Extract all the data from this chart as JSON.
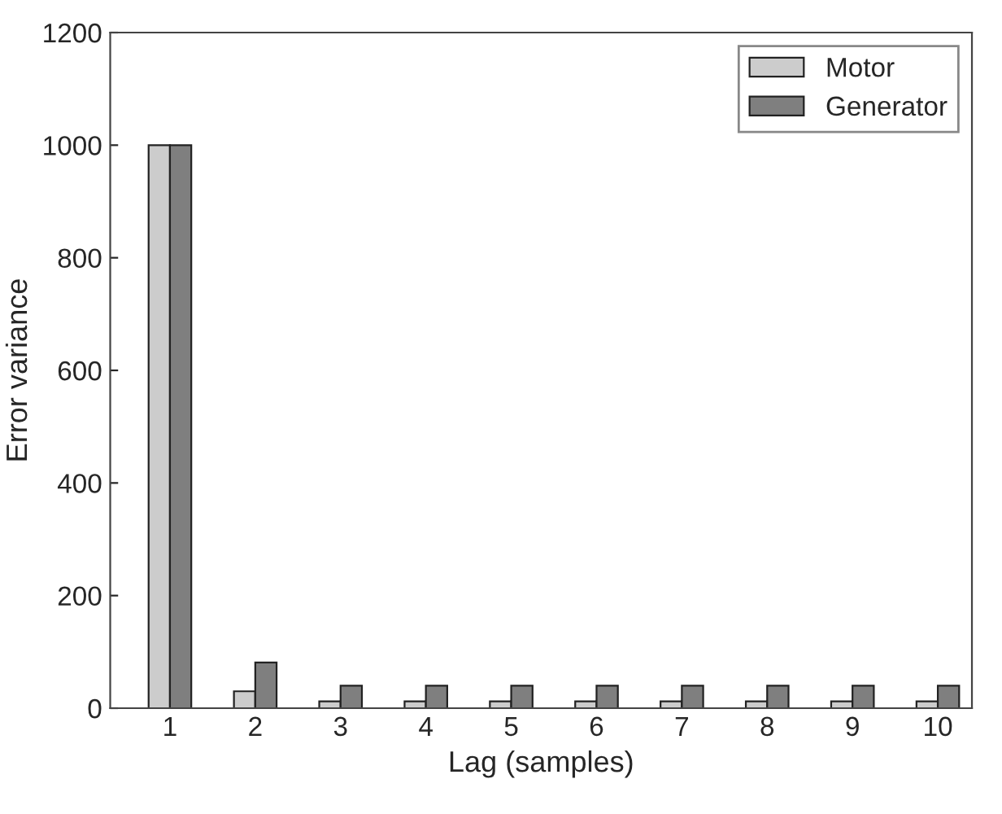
{
  "chart_data": {
    "type": "bar",
    "xlabel": "Lag (samples)",
    "ylabel": "Error variance",
    "categories": [
      "1",
      "2",
      "3",
      "4",
      "5",
      "6",
      "7",
      "8",
      "9",
      "10"
    ],
    "series": [
      {
        "name": "Motor",
        "color": "#cccccc",
        "values": [
          1000,
          30,
          12,
          12,
          12,
          12,
          12,
          12,
          12,
          12
        ]
      },
      {
        "name": "Generator",
        "color": "#7f7f7f",
        "values": [
          1000,
          81,
          40,
          40,
          40,
          40,
          40,
          40,
          40,
          40
        ]
      }
    ],
    "ylim": [
      0,
      1200
    ],
    "yticks": [
      0,
      200,
      400,
      600,
      800,
      1000,
      1200
    ],
    "grid": false,
    "legend": "top right"
  }
}
